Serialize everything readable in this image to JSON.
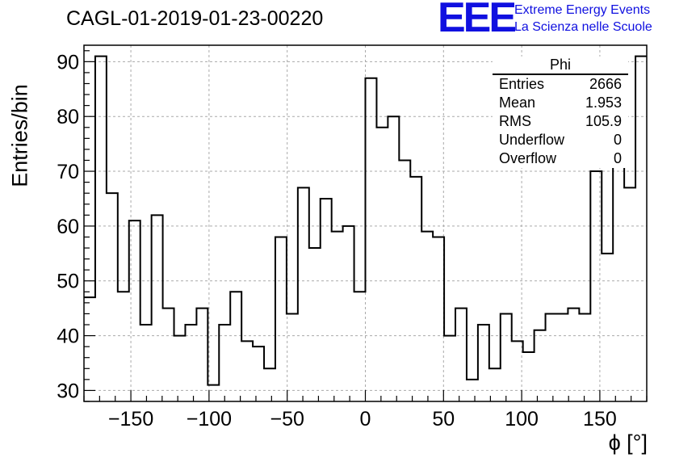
{
  "header": {
    "title": "CAGL-01-2019-01-23-00220",
    "logo_text": "EEE",
    "logo_line1": "Extreme Energy Events",
    "logo_line2": "La Scienza nelle Scuole",
    "logo_color": "#1010e0"
  },
  "stats": {
    "title": "Phi",
    "rows": [
      {
        "label": "Entries",
        "value": "2666"
      },
      {
        "label": "Mean",
        "value": "1.953"
      },
      {
        "label": "RMS",
        "value": "105.9"
      },
      {
        "label": "Underflow",
        "value": "0"
      },
      {
        "label": "Overflow",
        "value": "0"
      }
    ]
  },
  "chart_data": {
    "type": "bar",
    "histogram": "step",
    "xlabel": "ϕ [°]",
    "ylabel": "Entries/bin",
    "xlim": [
      -180,
      180
    ],
    "ylim": [
      28,
      93
    ],
    "bin_width": 7.2,
    "grid": true,
    "xticks": [
      -150,
      -100,
      -50,
      0,
      50,
      100,
      150
    ],
    "xtick_labels": [
      "−150",
      "−100",
      "−50",
      "0",
      "50",
      "100",
      "150"
    ],
    "yticks": [
      30,
      40,
      50,
      60,
      70,
      80,
      90
    ],
    "values": [
      47,
      91,
      66,
      48,
      61,
      42,
      62,
      45,
      40,
      42,
      45,
      31,
      42,
      48,
      39,
      38,
      34,
      58,
      44,
      67,
      56,
      65,
      59,
      60,
      48,
      87,
      78,
      80,
      72,
      69,
      59,
      58,
      40,
      45,
      32,
      42,
      34,
      44,
      39,
      37,
      41,
      44,
      44,
      45,
      44,
      70,
      55,
      71,
      67,
      91
    ],
    "line_color": "#000000"
  }
}
